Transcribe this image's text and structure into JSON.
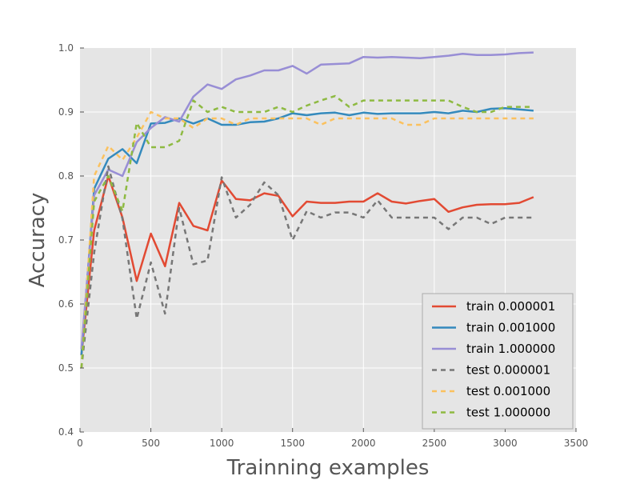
{
  "chart_data": {
    "type": "line",
    "title": "",
    "xlabel": "Trainning examples",
    "ylabel": "Accuracy",
    "xlim": [
      0,
      3500
    ],
    "ylim": [
      0.4,
      1.0
    ],
    "xticks": [
      0,
      500,
      1000,
      1500,
      2000,
      2500,
      3000,
      3500
    ],
    "yticks": [
      0.4,
      0.5,
      0.6,
      0.7,
      0.8,
      0.9,
      1.0
    ],
    "xtick_labels": [
      "0",
      "500",
      "1000",
      "1500",
      "2000",
      "2500",
      "3000",
      "3500"
    ],
    "ytick_labels": [
      "0.4",
      "0.5",
      "0.6",
      "0.7",
      "0.8",
      "0.9",
      "1.0"
    ],
    "grid": true,
    "legend_position": "bottom-right",
    "x": [
      10,
      100,
      200,
      300,
      400,
      500,
      600,
      700,
      800,
      900,
      1000,
      1100,
      1200,
      1300,
      1400,
      1500,
      1600,
      1700,
      1800,
      1900,
      2000,
      2100,
      2200,
      2300,
      2400,
      2500,
      2600,
      2700,
      2800,
      2900,
      3000,
      3100,
      3200
    ],
    "series": [
      {
        "name": "train 0.000001",
        "color": "#e24a33",
        "style": "solid",
        "values": [
          0.52,
          0.715,
          0.8,
          0.735,
          0.636,
          0.71,
          0.659,
          0.758,
          0.722,
          0.715,
          0.793,
          0.764,
          0.762,
          0.773,
          0.769,
          0.737,
          0.76,
          0.758,
          0.758,
          0.76,
          0.76,
          0.773,
          0.76,
          0.757,
          0.761,
          0.764,
          0.744,
          0.751,
          0.755,
          0.756,
          0.756,
          0.758,
          0.767
        ]
      },
      {
        "name": "train 0.001000",
        "color": "#348abd",
        "style": "solid",
        "values": [
          0.52,
          0.78,
          0.827,
          0.842,
          0.82,
          0.882,
          0.883,
          0.89,
          0.882,
          0.89,
          0.88,
          0.88,
          0.884,
          0.885,
          0.89,
          0.898,
          0.895,
          0.898,
          0.899,
          0.895,
          0.899,
          0.897,
          0.898,
          0.898,
          0.898,
          0.9,
          0.898,
          0.902,
          0.9,
          0.905,
          0.906,
          0.904,
          0.902
        ]
      },
      {
        "name": "train 1.000000",
        "color": "#988ed5",
        "style": "solid",
        "values": [
          0.53,
          0.77,
          0.81,
          0.8,
          0.853,
          0.875,
          0.892,
          0.885,
          0.924,
          0.943,
          0.936,
          0.951,
          0.957,
          0.965,
          0.965,
          0.972,
          0.96,
          0.974,
          0.975,
          0.976,
          0.986,
          0.985,
          0.986,
          0.985,
          0.984,
          0.986,
          0.988,
          0.991,
          0.989,
          0.989,
          0.99,
          0.992,
          0.993
        ]
      },
      {
        "name": "test 0.000001",
        "color": "#777777",
        "style": "dashed",
        "values": [
          0.5,
          0.68,
          0.815,
          0.733,
          0.577,
          0.665,
          0.585,
          0.75,
          0.662,
          0.668,
          0.798,
          0.735,
          0.755,
          0.79,
          0.77,
          0.7,
          0.745,
          0.735,
          0.743,
          0.743,
          0.735,
          0.762,
          0.735,
          0.735,
          0.735,
          0.735,
          0.717,
          0.735,
          0.735,
          0.725,
          0.735,
          0.735,
          0.735
        ]
      },
      {
        "name": "test 0.001000",
        "color": "#fbc15e",
        "style": "dashed",
        "values": [
          0.5,
          0.8,
          0.847,
          0.825,
          0.86,
          0.9,
          0.89,
          0.89,
          0.875,
          0.89,
          0.89,
          0.88,
          0.89,
          0.89,
          0.89,
          0.89,
          0.89,
          0.88,
          0.89,
          0.89,
          0.89,
          0.89,
          0.89,
          0.88,
          0.88,
          0.89,
          0.89,
          0.89,
          0.89,
          0.89,
          0.89,
          0.89,
          0.89
        ]
      },
      {
        "name": "test 1.000000",
        "color": "#8eba42",
        "style": "dashed",
        "values": [
          0.5,
          0.76,
          0.8,
          0.745,
          0.883,
          0.845,
          0.845,
          0.855,
          0.918,
          0.9,
          0.908,
          0.9,
          0.9,
          0.9,
          0.908,
          0.9,
          0.91,
          0.918,
          0.925,
          0.908,
          0.918,
          0.918,
          0.918,
          0.918,
          0.918,
          0.918,
          0.918,
          0.908,
          0.9,
          0.9,
          0.908,
          0.908,
          0.908
        ]
      }
    ]
  }
}
